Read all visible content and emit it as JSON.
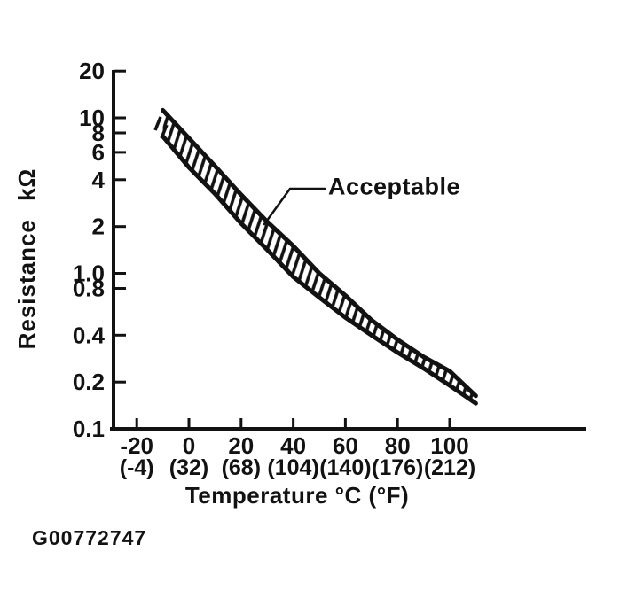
{
  "figure": {
    "caption": "G00772747",
    "ink": "#121212",
    "background": "#ffffff"
  },
  "chart_data": {
    "type": "area",
    "title": "",
    "x_axis": {
      "title": "Temperature °C (°F)",
      "tick_values": [
        -20,
        0,
        20,
        40,
        60,
        80,
        100
      ],
      "labels_c": [
        "-20",
        "0",
        "20",
        "40",
        "60",
        "80",
        "100"
      ],
      "labels_f": [
        "(-4)",
        "(32)",
        "(68)",
        "(104)",
        "(140)",
        "(176)",
        "(212)"
      ]
    },
    "y_axis": {
      "title": "Resistance kΩ",
      "scale": "log",
      "tick_values": [
        20,
        10,
        8,
        6,
        4,
        2,
        1,
        0.8,
        0.4,
        0.2,
        0.1
      ],
      "tick_labels": [
        "20",
        "10",
        "8",
        "6",
        "4",
        "2",
        "1.0",
        "0.8",
        "0.4",
        "0.2",
        "0.1"
      ],
      "range_kohm": [
        0.1,
        20
      ]
    },
    "band": {
      "label": "Acceptable",
      "fill": "hatched",
      "temps_c": [
        -10,
        0,
        10,
        20,
        30,
        40,
        50,
        60,
        70,
        80,
        90,
        100,
        110
      ],
      "upper_kohm": [
        11.2,
        7.4,
        4.9,
        3.2,
        2.15,
        1.5,
        1.0,
        0.72,
        0.5,
        0.375,
        0.29,
        0.235,
        0.163
      ],
      "lower_kohm": [
        7.6,
        4.8,
        3.25,
        2.1,
        1.42,
        0.95,
        0.7,
        0.52,
        0.4,
        0.31,
        0.245,
        0.19,
        0.146
      ]
    }
  }
}
